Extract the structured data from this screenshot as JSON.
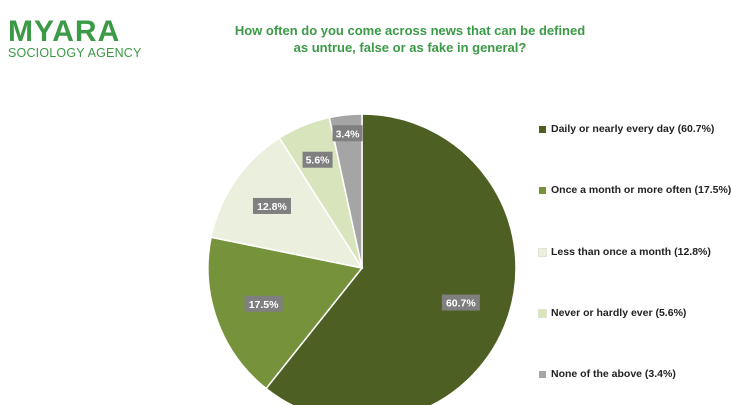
{
  "brand": {
    "name": "MYARA",
    "subtitle": "SOCIOLOGY AGENCY",
    "color": "#3a9a45"
  },
  "chart_data": {
    "type": "pie",
    "title_lines": [
      "How often do you come across news that can be defined",
      "as untrue, false or as fake in general?"
    ],
    "slices": [
      {
        "label": "Daily or nearly every day (60.7%)",
        "value": 60.7,
        "data_label": "60.7%",
        "color": "#4d5f23"
      },
      {
        "label": "Once a month or more often (17.5%)",
        "value": 17.5,
        "data_label": "17.5%",
        "color": "#76933c"
      },
      {
        "label": "Less than once a month (12.8%)",
        "value": 12.8,
        "data_label": "12.8%",
        "color": "#ebf0de"
      },
      {
        "label": "Never or hardly ever (5.6%)",
        "value": 5.6,
        "data_label": "5.6%",
        "color": "#d8e4bc"
      },
      {
        "label": "None of the above (3.4%)",
        "value": 3.4,
        "data_label": "3.4%",
        "color": "#a5a5a5"
      }
    ],
    "start_angle": "12 o'clock",
    "direction": "clockwise",
    "legend_position": "right",
    "data_label_style": {
      "background": "#7f7f7f",
      "text_color": "#ffffff"
    }
  }
}
